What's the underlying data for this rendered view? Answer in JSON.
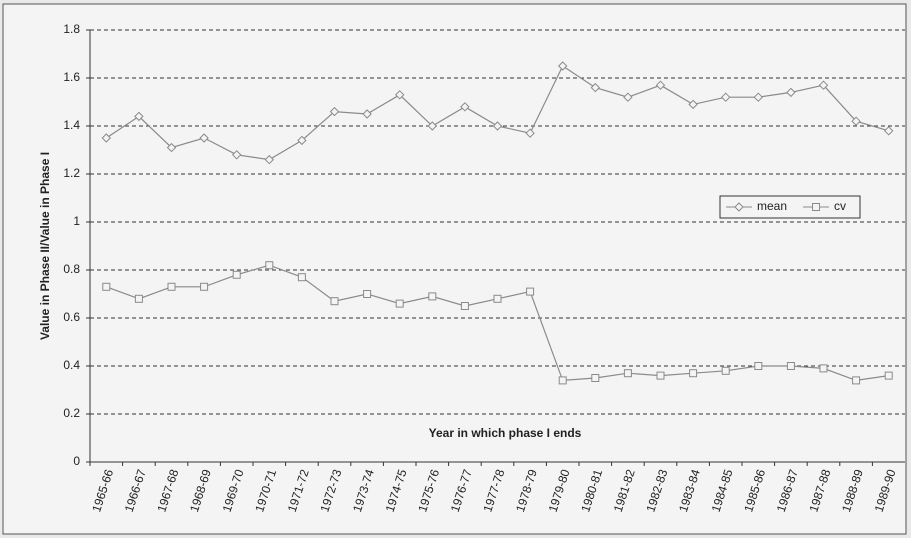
{
  "chart_data": {
    "type": "line",
    "x_label": "Year in which phase I ends",
    "y_label": "Value in Phase II/Value in Phase I",
    "categories": [
      "1965-66",
      "1966-67",
      "1967-68",
      "1968-69",
      "1969-70",
      "1970-71",
      "1971-72",
      "1972-73",
      "1973-74",
      "1974-75",
      "1975-76",
      "1976-77",
      "1977-78",
      "1978-79",
      "1979-80",
      "1980-81",
      "1981-82",
      "1982-83",
      "1983-84",
      "1984-85",
      "1985-86",
      "1986-87",
      "1987-88",
      "1988-89",
      "1989-90"
    ],
    "series": [
      {
        "name": "mean",
        "color": "#8a8a8a",
        "marker": "diamond",
        "values": [
          1.35,
          1.44,
          1.31,
          1.35,
          1.28,
          1.26,
          1.34,
          1.46,
          1.45,
          1.53,
          1.4,
          1.48,
          1.4,
          1.37,
          1.65,
          1.56,
          1.52,
          1.57,
          1.49,
          1.52,
          1.52,
          1.54,
          1.57,
          1.42,
          1.38
        ]
      },
      {
        "name": "cv",
        "color": "#8a8a8a",
        "marker": "square",
        "values": [
          0.73,
          0.68,
          0.73,
          0.73,
          0.78,
          0.82,
          0.77,
          0.67,
          0.7,
          0.66,
          0.69,
          0.65,
          0.68,
          0.71,
          0.34,
          0.35,
          0.37,
          0.36,
          0.37,
          0.38,
          0.4,
          0.4,
          0.39,
          0.34,
          0.36
        ]
      }
    ],
    "ylim": [
      0,
      1.8
    ],
    "yticks": [
      0,
      0.2,
      0.4,
      0.6,
      0.8,
      1,
      1.2,
      1.4,
      1.6,
      1.8
    ],
    "grid": true,
    "legend": "right"
  }
}
